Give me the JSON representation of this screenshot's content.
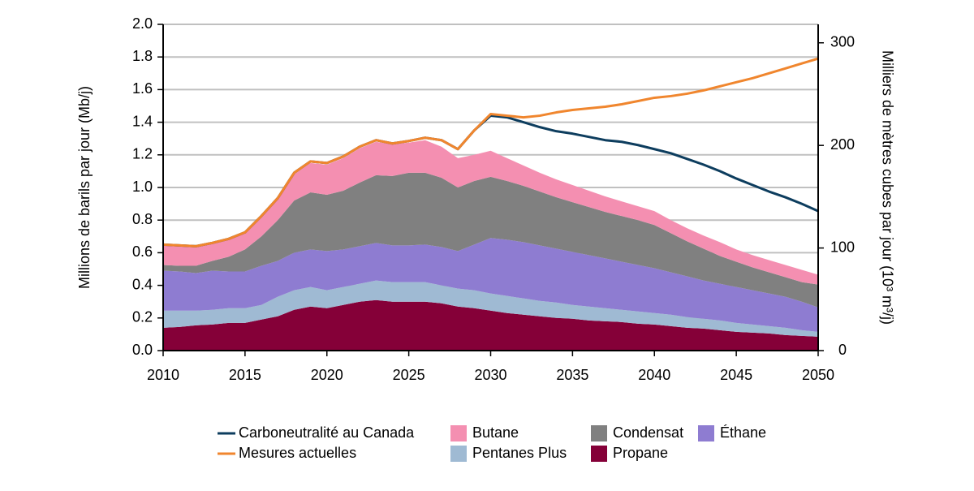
{
  "chart_data": {
    "type": "area",
    "ylabel": "Millions de barils par jour (Mb/j)",
    "y2label": "Milliers de mètres cubes par jour (10³ m³/j)",
    "x": [
      2010,
      2011,
      2012,
      2013,
      2014,
      2015,
      2016,
      2017,
      2018,
      2019,
      2020,
      2021,
      2022,
      2023,
      2024,
      2025,
      2026,
      2027,
      2028,
      2029,
      2030,
      2031,
      2032,
      2033,
      2034,
      2035,
      2036,
      2037,
      2038,
      2039,
      2040,
      2041,
      2042,
      2043,
      2044,
      2045,
      2046,
      2047,
      2048,
      2049,
      2050
    ],
    "xlim": [
      2010,
      2050
    ],
    "xticks": [
      2010,
      2015,
      2020,
      2025,
      2030,
      2035,
      2040,
      2045,
      2050
    ],
    "ylim": [
      0,
      2
    ],
    "yticks": [
      {
        "value": 0,
        "label": "0.0"
      },
      0.2,
      0.4,
      0.6,
      0.8,
      {
        "value": 1,
        "label": "1.0"
      },
      1.2,
      1.4,
      1.6,
      1.8,
      {
        "value": 2,
        "label": "2.0"
      }
    ],
    "y2lim": [
      0,
      318
    ],
    "y2ticks": [
      0,
      100,
      200,
      300
    ],
    "grid": true,
    "stacked": true,
    "series": [
      {
        "name": "Carboneutralité au Canada",
        "type": "line",
        "color": "#0d3d5e",
        "values": [
          0.65,
          0.645,
          0.64,
          0.66,
          0.685,
          0.725,
          0.825,
          0.935,
          1.09,
          1.16,
          1.15,
          1.19,
          1.25,
          1.29,
          1.27,
          1.285,
          1.305,
          1.29,
          1.235,
          1.35,
          1.44,
          1.43,
          1.4,
          1.37,
          1.345,
          1.33,
          1.31,
          1.29,
          1.28,
          1.26,
          1.235,
          1.21,
          1.175,
          1.14,
          1.1,
          1.055,
          1.015,
          0.975,
          0.94,
          0.9,
          0.855
        ]
      },
      {
        "name": "Mesures actuelles",
        "type": "line",
        "color": "#f0862e",
        "values": [
          0.65,
          0.645,
          0.64,
          0.66,
          0.685,
          0.725,
          0.825,
          0.935,
          1.09,
          1.16,
          1.15,
          1.19,
          1.25,
          1.29,
          1.27,
          1.285,
          1.305,
          1.29,
          1.235,
          1.35,
          1.45,
          1.44,
          1.43,
          1.44,
          1.46,
          1.475,
          1.485,
          1.495,
          1.51,
          1.53,
          1.55,
          1.56,
          1.575,
          1.595,
          1.62,
          1.645,
          1.67,
          1.7,
          1.73,
          1.76,
          1.79
        ]
      },
      {
        "name": "Butane",
        "type": "area",
        "color": "#f48fb1",
        "values": [
          0.12,
          0.12,
          0.115,
          0.105,
          0.105,
          0.1,
          0.12,
          0.13,
          0.16,
          0.18,
          0.185,
          0.2,
          0.21,
          0.205,
          0.195,
          0.185,
          0.2,
          0.19,
          0.18,
          0.16,
          0.16,
          0.14,
          0.125,
          0.115,
          0.11,
          0.105,
          0.1,
          0.095,
          0.09,
          0.085,
          0.085,
          0.08,
          0.08,
          0.08,
          0.085,
          0.075,
          0.075,
          0.075,
          0.075,
          0.075,
          0.06
        ]
      },
      {
        "name": "Pentanes Plus",
        "type": "area",
        "color": "#9fbad3",
        "values": [
          0.105,
          0.1,
          0.09,
          0.09,
          0.09,
          0.09,
          0.09,
          0.12,
          0.12,
          0.12,
          0.11,
          0.11,
          0.11,
          0.12,
          0.12,
          0.12,
          0.12,
          0.11,
          0.11,
          0.11,
          0.105,
          0.105,
          0.1,
          0.095,
          0.095,
          0.085,
          0.085,
          0.08,
          0.075,
          0.075,
          0.07,
          0.07,
          0.065,
          0.06,
          0.06,
          0.055,
          0.05,
          0.045,
          0.045,
          0.035,
          0.03
        ]
      },
      {
        "name": "Condensat",
        "type": "area",
        "color": "#808080",
        "values": [
          0.035,
          0.035,
          0.045,
          0.06,
          0.09,
          0.135,
          0.18,
          0.25,
          0.32,
          0.35,
          0.345,
          0.36,
          0.39,
          0.415,
          0.425,
          0.445,
          0.44,
          0.425,
          0.39,
          0.39,
          0.375,
          0.36,
          0.345,
          0.33,
          0.315,
          0.305,
          0.295,
          0.285,
          0.28,
          0.275,
          0.265,
          0.24,
          0.215,
          0.195,
          0.17,
          0.155,
          0.14,
          0.13,
          0.12,
          0.12,
          0.14
        ]
      },
      {
        "name": "Propane",
        "type": "area",
        "color": "#850038",
        "values": [
          0.14,
          0.145,
          0.155,
          0.16,
          0.17,
          0.17,
          0.19,
          0.21,
          0.25,
          0.27,
          0.26,
          0.28,
          0.3,
          0.31,
          0.3,
          0.3,
          0.3,
          0.29,
          0.27,
          0.26,
          0.245,
          0.23,
          0.22,
          0.21,
          0.2,
          0.195,
          0.185,
          0.18,
          0.175,
          0.165,
          0.16,
          0.15,
          0.14,
          0.135,
          0.125,
          0.115,
          0.11,
          0.105,
          0.095,
          0.09,
          0.085
        ]
      },
      {
        "name": "Éthane",
        "type": "area",
        "color": "#8e7cd1",
        "values": [
          0.245,
          0.24,
          0.23,
          0.24,
          0.225,
          0.225,
          0.24,
          0.22,
          0.23,
          0.23,
          0.24,
          0.23,
          0.23,
          0.23,
          0.225,
          0.225,
          0.23,
          0.235,
          0.23,
          0.28,
          0.34,
          0.345,
          0.345,
          0.34,
          0.33,
          0.325,
          0.315,
          0.305,
          0.295,
          0.285,
          0.275,
          0.26,
          0.25,
          0.235,
          0.225,
          0.22,
          0.21,
          0.2,
          0.19,
          0.175,
          0.15
        ]
      }
    ]
  }
}
